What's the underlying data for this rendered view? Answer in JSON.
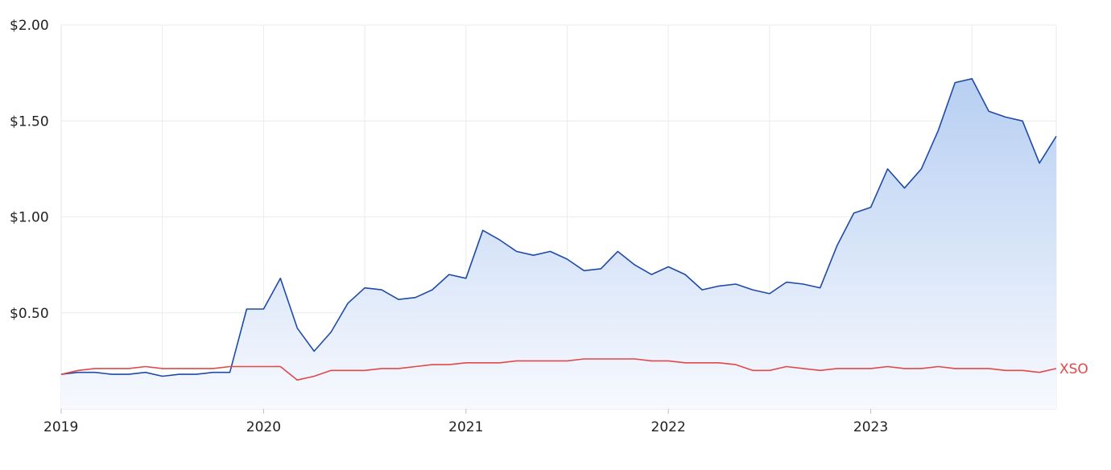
{
  "chart_data": {
    "type": "area",
    "x_axis": {
      "ticks": [
        "2019",
        "2020",
        "2021",
        "2022",
        "2023"
      ],
      "range": [
        "2019-01",
        "2023-12"
      ]
    },
    "y_axis": {
      "ticks": [
        "$0.50",
        "$1.00",
        "$1.50",
        "$2.00"
      ],
      "tick_values": [
        0.5,
        1.0,
        1.5,
        2.0
      ],
      "range": [
        0.0,
        2.0
      ]
    },
    "grid": true,
    "series": [
      {
        "name": "",
        "style": "area",
        "color": "#1f4aa8",
        "fill_top": "#b7cff2",
        "fill_bottom": "#f7f9fe",
        "x": [
          "2019-01",
          "2019-02",
          "2019-03",
          "2019-04",
          "2019-05",
          "2019-06",
          "2019-07",
          "2019-08",
          "2019-09",
          "2019-10",
          "2019-11",
          "2019-12",
          "2020-01",
          "2020-02",
          "2020-03",
          "2020-04",
          "2020-05",
          "2020-06",
          "2020-07",
          "2020-08",
          "2020-09",
          "2020-10",
          "2020-11",
          "2020-12",
          "2021-01",
          "2021-02",
          "2021-03",
          "2021-04",
          "2021-05",
          "2021-06",
          "2021-07",
          "2021-08",
          "2021-09",
          "2021-10",
          "2021-11",
          "2021-12",
          "2022-01",
          "2022-02",
          "2022-03",
          "2022-04",
          "2022-05",
          "2022-06",
          "2022-07",
          "2022-08",
          "2022-09",
          "2022-10",
          "2022-11",
          "2022-12",
          "2023-01",
          "2023-02",
          "2023-03",
          "2023-04",
          "2023-05",
          "2023-06",
          "2023-07",
          "2023-08",
          "2023-09",
          "2023-10",
          "2023-11",
          "2023-12"
        ],
        "values": [
          0.18,
          0.19,
          0.19,
          0.18,
          0.18,
          0.19,
          0.17,
          0.18,
          0.18,
          0.19,
          0.19,
          0.52,
          0.52,
          0.68,
          0.42,
          0.3,
          0.4,
          0.55,
          0.63,
          0.62,
          0.57,
          0.58,
          0.62,
          0.7,
          0.68,
          0.93,
          0.88,
          0.82,
          0.8,
          0.82,
          0.78,
          0.72,
          0.73,
          0.82,
          0.75,
          0.7,
          0.74,
          0.7,
          0.62,
          0.64,
          0.65,
          0.62,
          0.6,
          0.66,
          0.65,
          0.63,
          0.85,
          1.02,
          1.05,
          1.25,
          1.15,
          1.25,
          1.45,
          1.7,
          1.72,
          1.55,
          1.52,
          1.5,
          1.28,
          1.42
        ]
      },
      {
        "name": "XSO",
        "style": "line",
        "color": "#e0484a",
        "x": [
          "2019-01",
          "2019-02",
          "2019-03",
          "2019-04",
          "2019-05",
          "2019-06",
          "2019-07",
          "2019-08",
          "2019-09",
          "2019-10",
          "2019-11",
          "2019-12",
          "2020-01",
          "2020-02",
          "2020-03",
          "2020-04",
          "2020-05",
          "2020-06",
          "2020-07",
          "2020-08",
          "2020-09",
          "2020-10",
          "2020-11",
          "2020-12",
          "2021-01",
          "2021-02",
          "2021-03",
          "2021-04",
          "2021-05",
          "2021-06",
          "2021-07",
          "2021-08",
          "2021-09",
          "2021-10",
          "2021-11",
          "2021-12",
          "2022-01",
          "2022-02",
          "2022-03",
          "2022-04",
          "2022-05",
          "2022-06",
          "2022-07",
          "2022-08",
          "2022-09",
          "2022-10",
          "2022-11",
          "2022-12",
          "2023-01",
          "2023-02",
          "2023-03",
          "2023-04",
          "2023-05",
          "2023-06",
          "2023-07",
          "2023-08",
          "2023-09",
          "2023-10",
          "2023-11",
          "2023-12"
        ],
        "values": [
          0.18,
          0.2,
          0.21,
          0.21,
          0.21,
          0.22,
          0.21,
          0.21,
          0.21,
          0.21,
          0.22,
          0.22,
          0.22,
          0.22,
          0.15,
          0.17,
          0.2,
          0.2,
          0.2,
          0.21,
          0.21,
          0.22,
          0.23,
          0.23,
          0.24,
          0.24,
          0.24,
          0.25,
          0.25,
          0.25,
          0.25,
          0.26,
          0.26,
          0.26,
          0.26,
          0.25,
          0.25,
          0.24,
          0.24,
          0.24,
          0.23,
          0.2,
          0.2,
          0.22,
          0.21,
          0.2,
          0.21,
          0.21,
          0.21,
          0.22,
          0.21,
          0.21,
          0.22,
          0.21,
          0.21,
          0.21,
          0.2,
          0.2,
          0.19,
          0.21
        ]
      }
    ]
  }
}
